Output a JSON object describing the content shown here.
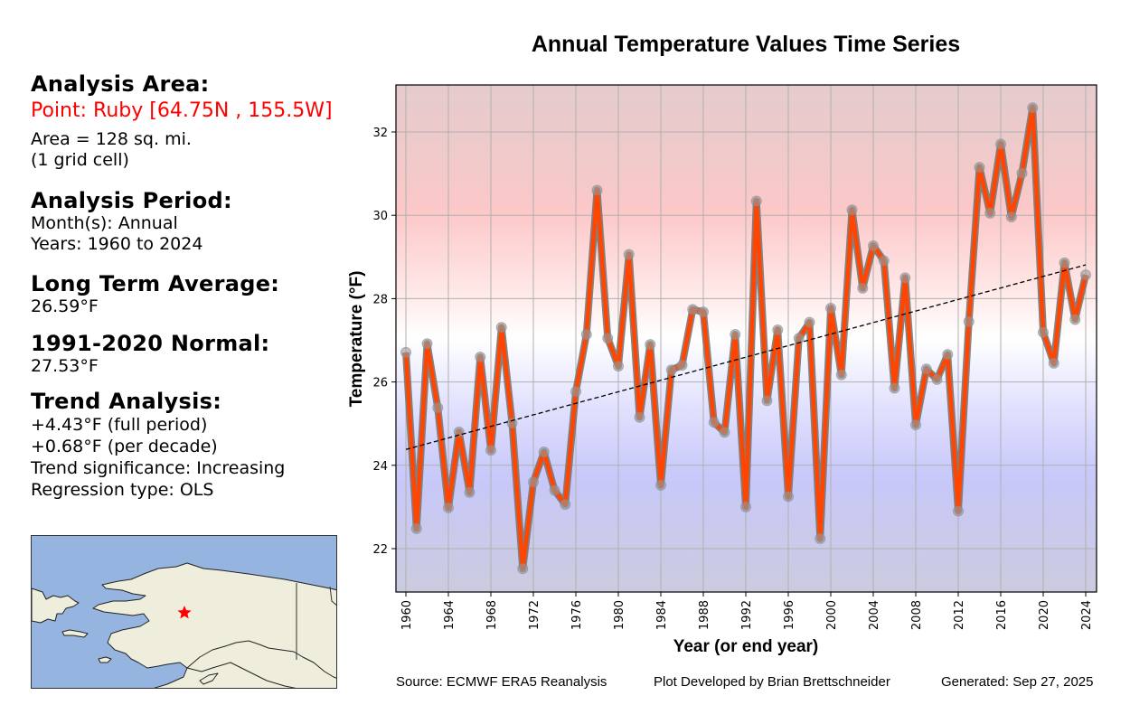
{
  "info": {
    "analysis_area_heading": "Analysis Area:",
    "point_label": "Point: Ruby [64.75N , 155.5W]",
    "area_line1": "Area = 128 sq. mi.",
    "area_line2": "(1 grid cell)",
    "analysis_period_heading": "Analysis Period:",
    "months": "Month(s): Annual",
    "years": "Years: 1960 to 2024",
    "long_term_avg_heading": "Long Term Average:",
    "long_term_avg_value": "26.59°F",
    "normal_heading": "1991-2020 Normal:",
    "normal_value": "27.53°F",
    "trend_heading": "Trend Analysis:",
    "trend_full": "+4.43°F (full period)",
    "trend_decade": "+0.68°F (per decade)",
    "trend_significance": "Trend significance: Increasing",
    "regression_type": "Regression type: OLS"
  },
  "map": {
    "region": "Alaska",
    "marker": "star-icon",
    "marker_color": "#ff0000",
    "ocean_color": "#95b4e0",
    "land_color": "#efeedc"
  },
  "footer": {
    "source": "Source: ECMWF ERA5 Reanalysis",
    "credit": "Plot Developed by Brian Brettschneider",
    "generated": "Generated: Sep 27, 2025"
  },
  "colors": {
    "line": "#ff4500",
    "line_outline": "#777777",
    "marker": "#999999",
    "trend": "#000000",
    "warm": "#ffc8c8",
    "cold": "#c8c8ff"
  },
  "chart_data": {
    "type": "line",
    "title": "Annual Temperature Values Time Series",
    "xlabel": "Year (or end year)",
    "ylabel": "Temperature (°F)",
    "xlim": [
      1959,
      2025
    ],
    "ylim": [
      21.0,
      33.1
    ],
    "xticks": [
      1960,
      1964,
      1968,
      1972,
      1976,
      1980,
      1984,
      1988,
      1992,
      1996,
      2000,
      2004,
      2008,
      2012,
      2016,
      2020,
      2024
    ],
    "yticks": [
      22,
      24,
      26,
      28,
      30,
      32
    ],
    "grid": true,
    "x": [
      1960,
      1961,
      1962,
      1963,
      1964,
      1965,
      1966,
      1967,
      1968,
      1969,
      1970,
      1971,
      1972,
      1973,
      1974,
      1975,
      1976,
      1977,
      1978,
      1979,
      1980,
      1981,
      1982,
      1983,
      1984,
      1985,
      1986,
      1987,
      1988,
      1989,
      1990,
      1991,
      1992,
      1993,
      1994,
      1995,
      1996,
      1997,
      1998,
      1999,
      2000,
      2001,
      2002,
      2003,
      2004,
      2005,
      2006,
      2007,
      2008,
      2009,
      2010,
      2011,
      2012,
      2013,
      2014,
      2015,
      2016,
      2017,
      2018,
      2019,
      2020,
      2021,
      2022,
      2023,
      2024
    ],
    "series": [
      {
        "name": "Annual Temperature",
        "values": [
          26.71,
          22.48,
          26.92,
          25.38,
          22.98,
          24.8,
          23.35,
          26.6,
          24.36,
          27.31,
          25.01,
          21.52,
          23.6,
          24.32,
          23.4,
          23.06,
          25.77,
          27.14,
          30.6,
          27.05,
          26.38,
          29.06,
          25.15,
          26.9,
          23.52,
          26.29,
          26.4,
          27.74,
          27.68,
          25.03,
          24.79,
          27.14,
          23.0,
          30.34,
          25.55,
          27.25,
          23.25,
          27.05,
          27.43,
          22.24,
          27.77,
          26.17,
          30.13,
          28.25,
          29.27,
          28.91,
          25.85,
          28.5,
          24.97,
          26.31,
          26.06,
          26.66,
          22.9,
          27.45,
          31.15,
          30.05,
          31.71,
          29.96,
          31.01,
          32.58,
          27.19,
          26.45,
          28.86,
          27.5,
          28.57
        ]
      }
    ],
    "trend_line": {
      "name": "OLS trend",
      "x": [
        1960,
        2024
      ],
      "y": [
        24.38,
        28.81
      ],
      "style": "dashed"
    }
  }
}
